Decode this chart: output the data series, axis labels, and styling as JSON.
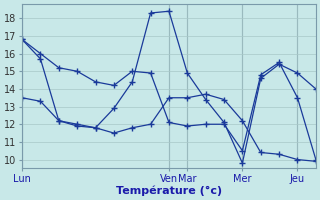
{
  "background_color": "#c8e8e8",
  "grid_color": "#a8c8c8",
  "line_color": "#1a3a9a",
  "ylim": [
    9.5,
    18.8
  ],
  "xlim": [
    0,
    96
  ],
  "xticks": [
    0,
    48,
    54,
    72,
    90
  ],
  "xtick_labels": [
    "Lun",
    "Ven",
    "Mar",
    "Mer",
    "Jeu"
  ],
  "yticks": [
    10,
    11,
    12,
    13,
    14,
    15,
    16,
    17,
    18
  ],
  "xlabel": "Température (°c)",
  "series": [
    {
      "x": [
        0,
        6,
        12,
        18,
        24,
        30,
        36,
        42,
        48,
        54,
        60,
        66,
        72,
        78,
        84,
        90,
        96
      ],
      "y": [
        16.8,
        15.7,
        12.2,
        11.9,
        11.8,
        11.5,
        11.8,
        12.0,
        13.5,
        13.5,
        13.7,
        13.4,
        12.2,
        10.4,
        10.3,
        10.0,
        9.9
      ]
    },
    {
      "x": [
        0,
        6,
        12,
        18,
        24,
        30,
        36,
        42,
        48,
        54,
        60,
        66,
        72,
        78,
        84,
        90,
        96
      ],
      "y": [
        13.5,
        13.3,
        12.2,
        12.0,
        11.8,
        12.9,
        14.4,
        18.3,
        18.4,
        14.9,
        13.4,
        12.1,
        9.8,
        14.6,
        15.4,
        14.9,
        14.0
      ]
    },
    {
      "x": [
        0,
        6,
        12,
        18,
        24,
        30,
        36,
        42,
        48,
        54,
        60,
        66,
        72,
        78,
        84,
        90,
        96
      ],
      "y": [
        16.8,
        16.0,
        15.2,
        15.0,
        14.4,
        14.2,
        15.0,
        14.9,
        12.1,
        11.9,
        12.0,
        12.0,
        10.5,
        14.8,
        15.5,
        13.5,
        10.0
      ]
    }
  ]
}
